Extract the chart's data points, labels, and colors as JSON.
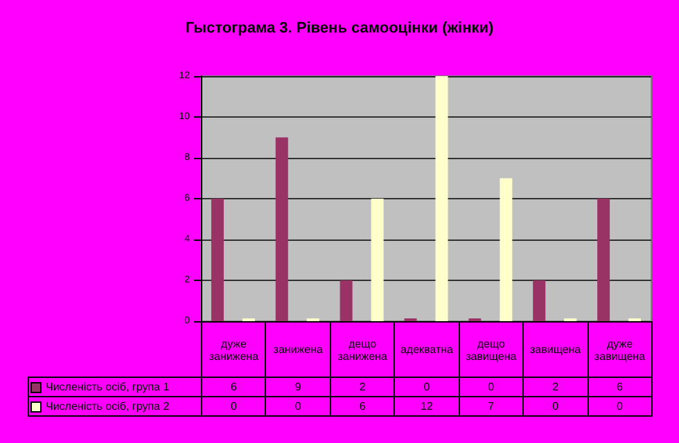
{
  "chart_data": {
    "type": "bar",
    "title": "Гыстограма 3. Рівень самооцінки (жінки)",
    "categories": [
      "дуже занижена",
      "занижена",
      "дещо занижена",
      "адекватна",
      "дещо завищена",
      "завищена",
      "дуже завищена"
    ],
    "series": [
      {
        "name": "Численість осіб, група 1",
        "color": "#993366",
        "values": [
          6,
          9,
          2,
          0,
          0,
          2,
          6
        ]
      },
      {
        "name": "Численість осіб, група 2",
        "color": "#ffffcc",
        "values": [
          0,
          0,
          6,
          12,
          7,
          0,
          0
        ]
      }
    ],
    "ylim": [
      0,
      12
    ],
    "yticks": [
      0,
      2,
      4,
      6,
      8,
      10,
      12
    ],
    "grid": "y",
    "data_labels": true,
    "legend": "bottom left"
  }
}
